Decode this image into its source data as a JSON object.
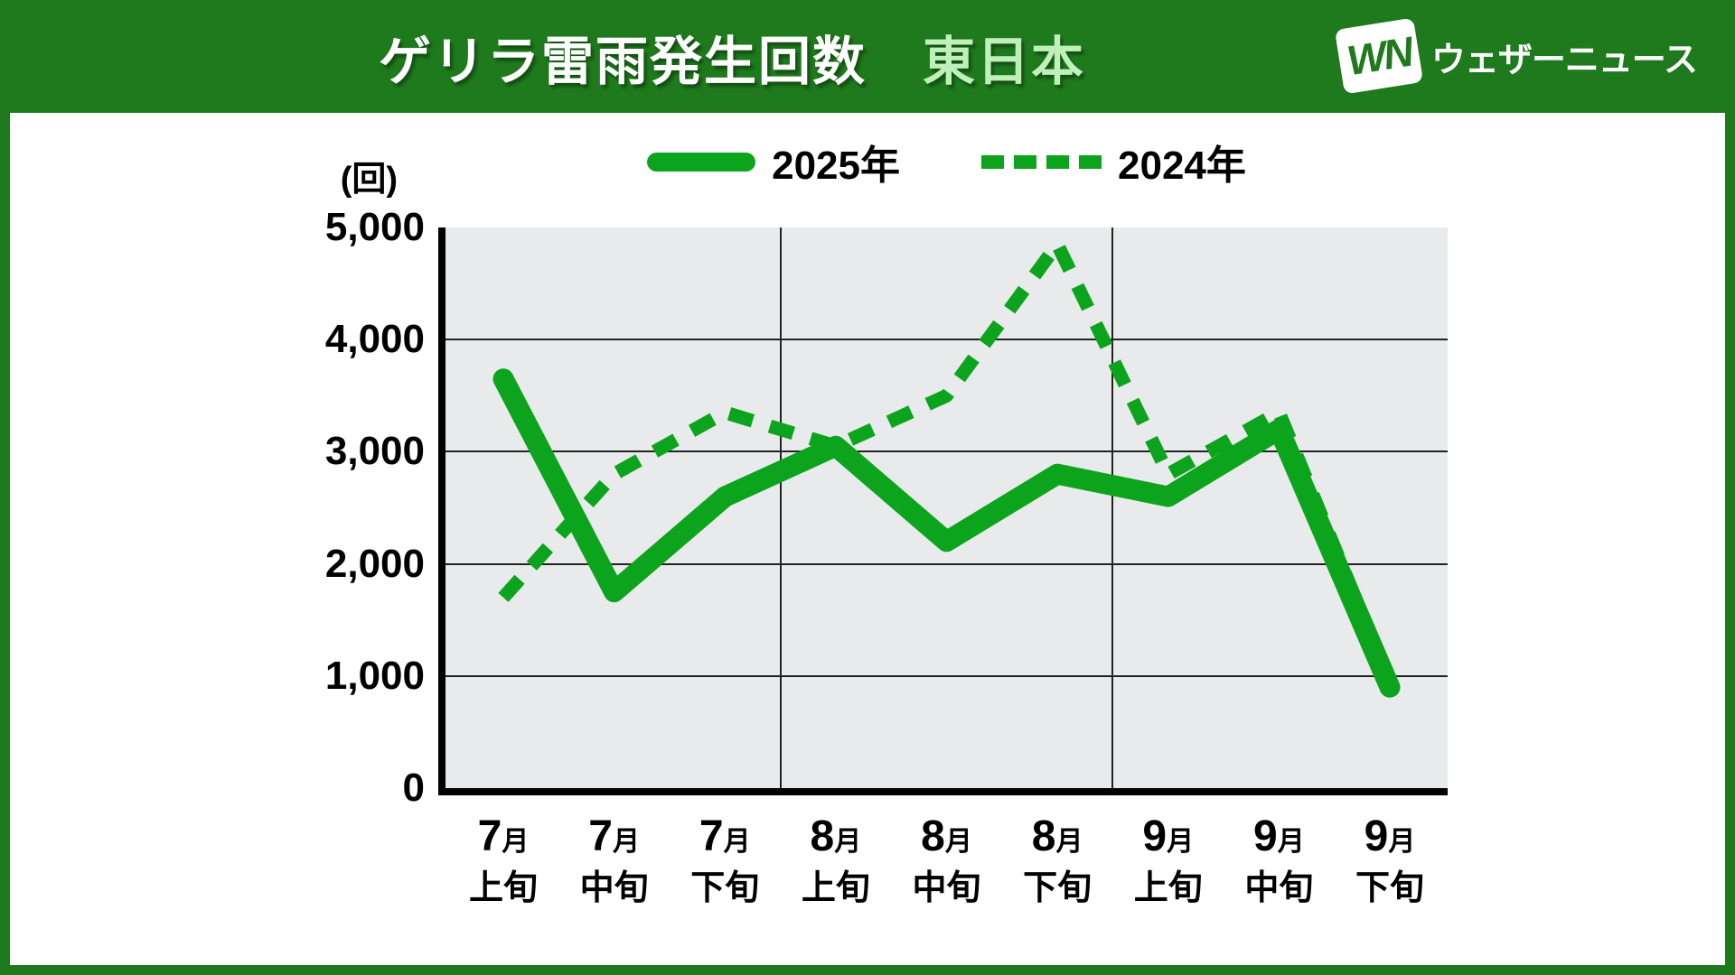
{
  "header": {
    "title": "ゲリラ雷雨発生回数",
    "region": "東日本",
    "logo_mark": "WN",
    "logo_name": "ウェザーニュース"
  },
  "chart_data": {
    "type": "line",
    "title": "ゲリラ雷雨発生回数 東日本",
    "unit_label": "(回)",
    "ylim": [
      0,
      5000
    ],
    "ytick_step": 1000,
    "ytick_labels": [
      "5,000",
      "4,000",
      "3,000",
      "2,000",
      "1,000",
      "0"
    ],
    "categories": [
      {
        "month": "7",
        "month_unit": "月",
        "period": "上旬"
      },
      {
        "month": "7",
        "month_unit": "月",
        "period": "中旬"
      },
      {
        "month": "7",
        "month_unit": "月",
        "period": "下旬"
      },
      {
        "month": "8",
        "month_unit": "月",
        "period": "上旬"
      },
      {
        "month": "8",
        "month_unit": "月",
        "period": "中旬"
      },
      {
        "month": "8",
        "month_unit": "月",
        "period": "下旬"
      },
      {
        "month": "9",
        "month_unit": "月",
        "period": "上旬"
      },
      {
        "month": "9",
        "month_unit": "月",
        "period": "中旬"
      },
      {
        "month": "9",
        "month_unit": "月",
        "period": "下旬"
      }
    ],
    "series": [
      {
        "name": "2025年",
        "line_style": "solid",
        "values": [
          3650,
          1750,
          2600,
          3050,
          2200,
          2800,
          2600,
          3200,
          900
        ]
      },
      {
        "name": "2024年",
        "line_style": "dashed",
        "values": [
          1700,
          2800,
          3350,
          3050,
          3500,
          4850,
          2800,
          3350,
          950
        ]
      }
    ],
    "grid": {
      "h_values": [
        1000,
        2000,
        3000,
        4000
      ],
      "v_between_indices": [
        2.5,
        5.5
      ]
    },
    "legend_position": "top-center",
    "colors": {
      "line_green": "#0ca41c",
      "frame_green": "#1e7a1c",
      "region_text_green": "#bff0ba",
      "plot_bg": "#e9eaec",
      "text": "#000000"
    }
  }
}
